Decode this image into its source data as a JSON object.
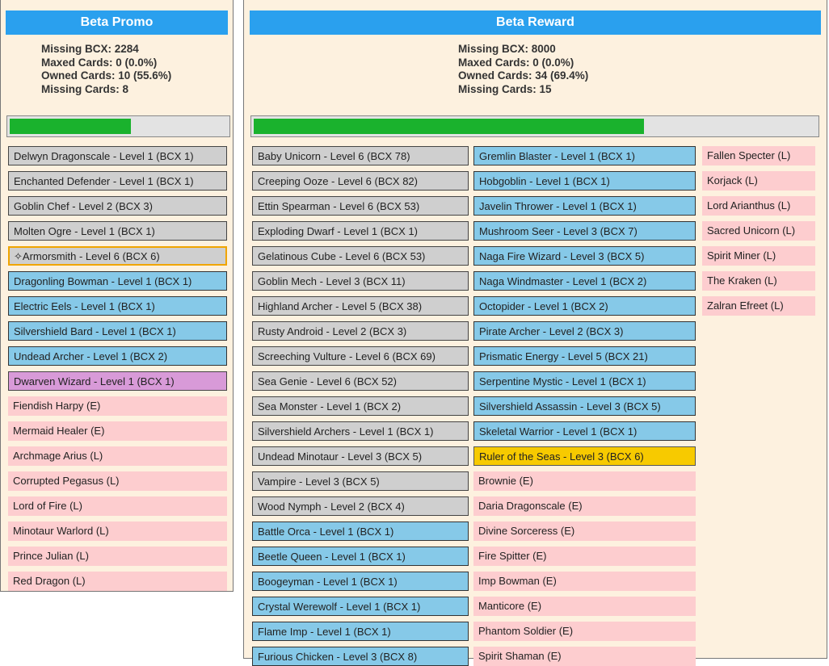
{
  "promo": {
    "title": "Beta Promo",
    "stats": {
      "missing_bcx": "Missing BCX: 2284",
      "maxed": "Maxed Cards: 0 (0.0%)",
      "owned": "Owned Cards: 10 (55.6%)",
      "missing_cards": "Missing Cards: 8"
    },
    "progress": 0.556,
    "cards": [
      {
        "label": "Delwyn Dragonscale - Level 1 (BCX 1)",
        "style": "grey"
      },
      {
        "label": "Enchanted Defender - Level 1 (BCX 1)",
        "style": "grey"
      },
      {
        "label": "Goblin Chef - Level 2 (BCX 3)",
        "style": "grey"
      },
      {
        "label": "Molten Ogre - Level 1 (BCX 1)",
        "style": "grey"
      },
      {
        "label": "Armorsmith - Level 6 (BCX 6)",
        "style": "grey",
        "selected": true,
        "icon": "sparkle-icon"
      },
      {
        "label": "Dragonling Bowman - Level 1 (BCX 1)",
        "style": "blue"
      },
      {
        "label": "Electric Eels - Level 1 (BCX 1)",
        "style": "blue"
      },
      {
        "label": "Silvershield Bard - Level 1 (BCX 1)",
        "style": "blue"
      },
      {
        "label": "Undead Archer - Level 1 (BCX 2)",
        "style": "blue"
      },
      {
        "label": "Dwarven Wizard - Level 1 (BCX 1)",
        "style": "purple"
      },
      {
        "label": "Fiendish Harpy (E)",
        "style": "pink"
      },
      {
        "label": "Mermaid Healer (E)",
        "style": "pink"
      },
      {
        "label": "Archmage Arius (L)",
        "style": "pink"
      },
      {
        "label": "Corrupted Pegasus (L)",
        "style": "pink"
      },
      {
        "label": "Lord of Fire (L)",
        "style": "pink"
      },
      {
        "label": "Minotaur Warlord (L)",
        "style": "pink"
      },
      {
        "label": "Prince Julian (L)",
        "style": "pink"
      },
      {
        "label": "Red Dragon (L)",
        "style": "pink"
      }
    ]
  },
  "reward": {
    "title": "Beta Reward",
    "stats": {
      "missing_bcx": "Missing BCX: 8000",
      "maxed": "Maxed Cards: 0 (0.0%)",
      "owned": "Owned Cards: 34 (69.4%)",
      "missing_cards": "Missing Cards: 15"
    },
    "progress": 0.694,
    "col1": [
      {
        "label": "Baby Unicorn - Level 6 (BCX 78)",
        "style": "grey"
      },
      {
        "label": "Creeping Ooze - Level 6 (BCX 82)",
        "style": "grey"
      },
      {
        "label": "Ettin Spearman - Level 6 (BCX 53)",
        "style": "grey"
      },
      {
        "label": "Exploding Dwarf - Level 1 (BCX 1)",
        "style": "grey"
      },
      {
        "label": "Gelatinous Cube - Level 6 (BCX 53)",
        "style": "grey"
      },
      {
        "label": "Goblin Mech - Level 3 (BCX 11)",
        "style": "grey"
      },
      {
        "label": "Highland Archer - Level 5 (BCX 38)",
        "style": "grey"
      },
      {
        "label": "Rusty Android - Level 2 (BCX 3)",
        "style": "grey"
      },
      {
        "label": "Screeching Vulture - Level 6 (BCX 69)",
        "style": "grey"
      },
      {
        "label": "Sea Genie - Level 6 (BCX 52)",
        "style": "grey"
      },
      {
        "label": "Sea Monster - Level 1 (BCX 2)",
        "style": "grey"
      },
      {
        "label": "Silvershield Archers - Level 1 (BCX 1)",
        "style": "grey"
      },
      {
        "label": "Undead Minotaur - Level 3 (BCX 5)",
        "style": "grey"
      },
      {
        "label": "Vampire - Level 3 (BCX 5)",
        "style": "grey"
      },
      {
        "label": "Wood Nymph - Level 2 (BCX 4)",
        "style": "grey"
      },
      {
        "label": "Battle Orca - Level 1 (BCX 1)",
        "style": "blue"
      },
      {
        "label": "Beetle Queen - Level 1 (BCX 1)",
        "style": "blue"
      },
      {
        "label": "Boogeyman - Level 1 (BCX 1)",
        "style": "blue"
      },
      {
        "label": "Crystal Werewolf - Level 1 (BCX 1)",
        "style": "blue"
      },
      {
        "label": "Flame Imp - Level 1 (BCX 1)",
        "style": "blue"
      },
      {
        "label": "Furious Chicken - Level 3 (BCX 8)",
        "style": "blue"
      }
    ],
    "col2": [
      {
        "label": "Gremlin Blaster - Level 1 (BCX 1)",
        "style": "blue"
      },
      {
        "label": "Hobgoblin - Level 1 (BCX 1)",
        "style": "blue"
      },
      {
        "label": "Javelin Thrower - Level 1 (BCX 1)",
        "style": "blue"
      },
      {
        "label": "Mushroom Seer - Level 3 (BCX 7)",
        "style": "blue"
      },
      {
        "label": "Naga Fire Wizard - Level 3 (BCX 5)",
        "style": "blue"
      },
      {
        "label": "Naga Windmaster - Level 1 (BCX 2)",
        "style": "blue"
      },
      {
        "label": "Octopider - Level 1 (BCX 2)",
        "style": "blue"
      },
      {
        "label": "Pirate Archer - Level 2 (BCX 3)",
        "style": "blue"
      },
      {
        "label": "Prismatic Energy - Level 5 (BCX 21)",
        "style": "blue"
      },
      {
        "label": "Serpentine Mystic - Level 1 (BCX 1)",
        "style": "blue"
      },
      {
        "label": "Silvershield Assassin - Level 3 (BCX 5)",
        "style": "blue"
      },
      {
        "label": "Skeletal Warrior - Level 1 (BCX 1)",
        "style": "blue"
      },
      {
        "label": "Ruler of the Seas - Level 3 (BCX 6)",
        "style": "gold"
      },
      {
        "label": "Brownie (E)",
        "style": "pink"
      },
      {
        "label": "Daria Dragonscale (E)",
        "style": "pink"
      },
      {
        "label": "Divine Sorceress (E)",
        "style": "pink"
      },
      {
        "label": "Fire Spitter (E)",
        "style": "pink"
      },
      {
        "label": "Imp Bowman (E)",
        "style": "pink"
      },
      {
        "label": "Manticore (E)",
        "style": "pink"
      },
      {
        "label": "Phantom Soldier (E)",
        "style": "pink"
      },
      {
        "label": "Spirit Shaman (E)",
        "style": "pink"
      }
    ],
    "col3": [
      {
        "label": "Fallen Specter (L)",
        "style": "pink"
      },
      {
        "label": "Korjack (L)",
        "style": "pink"
      },
      {
        "label": "Lord Arianthus (L)",
        "style": "pink"
      },
      {
        "label": "Sacred Unicorn (L)",
        "style": "pink"
      },
      {
        "label": "Spirit Miner (L)",
        "style": "pink"
      },
      {
        "label": "The Kraken (L)",
        "style": "pink"
      },
      {
        "label": "Zalran Efreet (L)",
        "style": "pink"
      }
    ]
  },
  "colors": {
    "header": "#2aa0ee",
    "progress": "#1ab22d",
    "panel_bg": "#fdf1df"
  }
}
